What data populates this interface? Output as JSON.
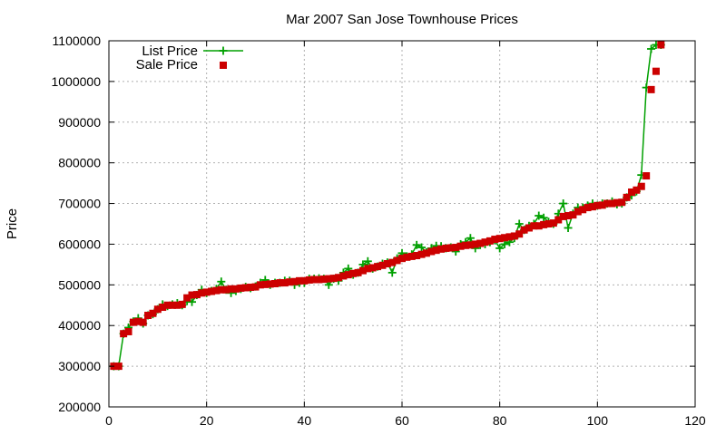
{
  "chart_data": {
    "type": "scatter",
    "title": "Mar 2007 San Jose Townhouse Prices",
    "xlabel": "",
    "ylabel": "Price",
    "xlim": [
      0,
      120
    ],
    "ylim": [
      200000,
      1100000
    ],
    "xticks": [
      0,
      20,
      40,
      60,
      80,
      100,
      120
    ],
    "yticks": [
      200000,
      300000,
      400000,
      500000,
      600000,
      700000,
      800000,
      900000,
      1000000,
      1100000
    ],
    "grid": true,
    "legend_position": "top-left",
    "series": [
      {
        "name": "List Price",
        "style": "line-plus",
        "color": "#00a000",
        "x": [
          1,
          2,
          3,
          4,
          5,
          6,
          7,
          8,
          9,
          10,
          11,
          12,
          13,
          14,
          15,
          16,
          17,
          18,
          19,
          20,
          21,
          22,
          23,
          24,
          25,
          26,
          27,
          28,
          29,
          30,
          31,
          32,
          33,
          34,
          35,
          36,
          37,
          38,
          39,
          40,
          41,
          42,
          43,
          44,
          45,
          46,
          47,
          48,
          49,
          50,
          51,
          52,
          53,
          54,
          55,
          56,
          57,
          58,
          59,
          60,
          61,
          62,
          63,
          64,
          65,
          66,
          67,
          68,
          69,
          70,
          71,
          72,
          73,
          74,
          75,
          76,
          77,
          78,
          79,
          80,
          81,
          82,
          83,
          84,
          85,
          86,
          87,
          88,
          89,
          90,
          91,
          92,
          93,
          94,
          95,
          96,
          97,
          98,
          99,
          100,
          101,
          102,
          103,
          104,
          105,
          106,
          107,
          108,
          109,
          110,
          111,
          112,
          113
        ],
        "values": [
          300000,
          300000,
          380000,
          395000,
          410000,
          418000,
          405000,
          425000,
          428000,
          440000,
          452000,
          448000,
          452000,
          455000,
          450000,
          460000,
          458000,
          475000,
          488000,
          480000,
          485000,
          490000,
          508000,
          488000,
          480000,
          485000,
          490000,
          495000,
          492000,
          496000,
          505000,
          512000,
          500000,
          505000,
          505000,
          510000,
          510000,
          500000,
          505000,
          505000,
          515000,
          515000,
          516000,
          515000,
          500000,
          515000,
          510000,
          530000,
          540000,
          525000,
          530000,
          550000,
          558000,
          540000,
          545000,
          552000,
          555000,
          530000,
          565000,
          578000,
          570000,
          575000,
          598000,
          592000,
          580000,
          590000,
          596000,
          595000,
          590000,
          592000,
          582000,
          600000,
          605000,
          615000,
          590000,
          598000,
          600000,
          605000,
          610000,
          590000,
          600000,
          605000,
          615000,
          650000,
          635000,
          645000,
          650000,
          670000,
          665000,
          655000,
          650000,
          675000,
          700000,
          640000,
          675000,
          690000,
          690000,
          695000,
          700000,
          695000,
          700000,
          700000,
          705000,
          698000,
          700000,
          715000,
          720000,
          730000,
          770000,
          985000,
          1080000,
          1090000,
          1090000
        ]
      },
      {
        "name": "Sale Price",
        "style": "square-points",
        "color": "#cc0000",
        "x": [
          1,
          2,
          3,
          4,
          5,
          6,
          7,
          8,
          9,
          10,
          11,
          12,
          13,
          14,
          15,
          16,
          17,
          18,
          19,
          20,
          21,
          22,
          23,
          24,
          25,
          26,
          27,
          28,
          29,
          30,
          31,
          32,
          33,
          34,
          35,
          36,
          37,
          38,
          39,
          40,
          41,
          42,
          43,
          44,
          45,
          46,
          47,
          48,
          49,
          50,
          51,
          52,
          53,
          54,
          55,
          56,
          57,
          58,
          59,
          60,
          61,
          62,
          63,
          64,
          65,
          66,
          67,
          68,
          69,
          70,
          71,
          72,
          73,
          74,
          75,
          76,
          77,
          78,
          79,
          80,
          81,
          82,
          83,
          84,
          85,
          86,
          87,
          88,
          89,
          90,
          91,
          92,
          93,
          94,
          95,
          96,
          97,
          98,
          99,
          100,
          101,
          102,
          103,
          104,
          105,
          106,
          107,
          108,
          109,
          110,
          111,
          112,
          113
        ],
        "values": [
          300000,
          300000,
          380000,
          385000,
          408000,
          410000,
          408000,
          425000,
          430000,
          440000,
          445000,
          450000,
          450000,
          450000,
          452000,
          468000,
          475000,
          476000,
          480000,
          482000,
          484000,
          486000,
          488000,
          488000,
          490000,
          490000,
          492000,
          493000,
          494000,
          495000,
          500000,
          501000,
          502000,
          503000,
          505000,
          505000,
          507000,
          508000,
          510000,
          510000,
          512000,
          513000,
          513000,
          514000,
          515000,
          516000,
          518000,
          522000,
          525000,
          528000,
          530000,
          535000,
          540000,
          542000,
          545000,
          548000,
          552000,
          555000,
          560000,
          565000,
          568000,
          570000,
          572000,
          575000,
          578000,
          582000,
          585000,
          588000,
          590000,
          591000,
          592000,
          595000,
          597000,
          598000,
          600000,
          602000,
          605000,
          608000,
          612000,
          614000,
          616000,
          618000,
          620000,
          625000,
          635000,
          640000,
          645000,
          645000,
          648000,
          650000,
          652000,
          660000,
          668000,
          670000,
          672000,
          680000,
          685000,
          690000,
          692000,
          695000,
          696000,
          700000,
          700000,
          702000,
          703000,
          715000,
          728000,
          733000,
          742000,
          768000,
          980000,
          1025000,
          1090000
        ]
      }
    ]
  }
}
